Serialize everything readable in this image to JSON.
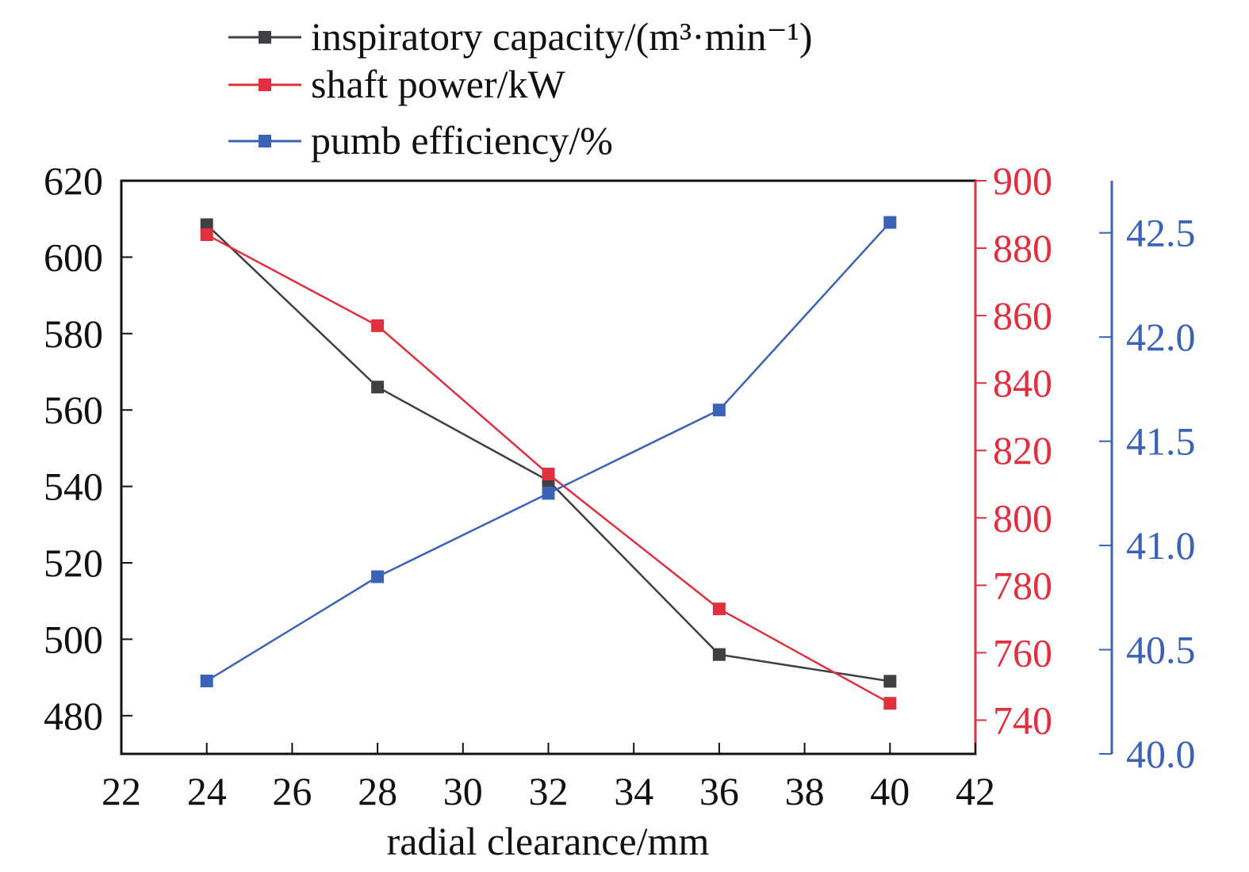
{
  "chart_data": {
    "type": "line",
    "xlabel": "radial clearance/mm",
    "xlim": [
      22,
      42
    ],
    "xticks": [
      "22",
      "24",
      "26",
      "28",
      "30",
      "32",
      "34",
      "36",
      "38",
      "40",
      "42"
    ],
    "x": [
      24,
      28,
      32,
      36,
      40
    ],
    "grid": false,
    "legend_position": "top",
    "series": [
      {
        "name": "inspiratory capacity/(m³·min⁻¹)",
        "axis": "left",
        "color": "#3f3f44",
        "values": [
          608.5,
          566,
          541.5,
          496,
          489
        ]
      },
      {
        "name": "shaft power/kW",
        "axis": "right",
        "color": "#e03040",
        "values": [
          884,
          857,
          813,
          773,
          745
        ]
      },
      {
        "name": "pumb efficiency/%",
        "axis": "right2",
        "color": "#3a63b8",
        "values": [
          40.35,
          40.85,
          41.25,
          41.65,
          42.55
        ]
      }
    ],
    "axes": {
      "left": {
        "ylim": [
          470,
          620
        ],
        "ticks": [
          "480",
          "500",
          "520",
          "540",
          "560",
          "580",
          "600",
          "620"
        ],
        "color": "#111111"
      },
      "right": {
        "ylim": [
          730,
          900
        ],
        "ticks": [
          "740",
          "760",
          "780",
          "800",
          "820",
          "840",
          "860",
          "880",
          "900"
        ],
        "color": "#e03040"
      },
      "right2": {
        "ylim": [
          40.0,
          42.75
        ],
        "ticks": [
          "40.0",
          "40.5",
          "41.0",
          "41.5",
          "42.0",
          "42.5"
        ],
        "color": "#3a63b8"
      }
    }
  }
}
